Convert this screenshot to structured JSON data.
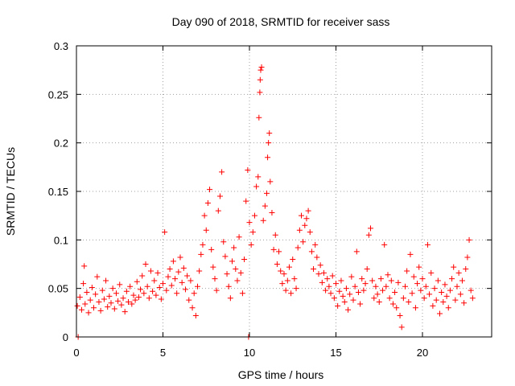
{
  "chart_data": {
    "type": "scatter",
    "title": "Day 090 of 2018, SRMTID for receiver sass",
    "xlabel": "GPS time / hours",
    "ylabel": "SRMTID / TECUs",
    "xlim": [
      0,
      24
    ],
    "ylim": [
      0,
      0.3
    ],
    "x_ticks": [
      "0",
      "5",
      "10",
      "15",
      "20"
    ],
    "x_tick_values": [
      0,
      5,
      10,
      15,
      20
    ],
    "y_ticks": [
      "0",
      "0.05",
      "0.1",
      "0.15",
      "0.2",
      "0.25",
      "0.3"
    ],
    "y_tick_values": [
      0,
      0.05,
      0.1,
      0.15,
      0.2,
      0.25,
      0.3
    ],
    "grid": true,
    "marker": "+",
    "marker_color": "#ff0000",
    "series": [
      {
        "name": "SRMTID",
        "points": [
          [
            0.05,
            0.032
          ],
          [
            0.1,
            0.0
          ],
          [
            0.2,
            0.041
          ],
          [
            0.3,
            0.028
          ],
          [
            0.4,
            0.055
          ],
          [
            0.45,
            0.073
          ],
          [
            0.5,
            0.034
          ],
          [
            0.6,
            0.046
          ],
          [
            0.7,
            0.025
          ],
          [
            0.8,
            0.038
          ],
          [
            0.9,
            0.051
          ],
          [
            1.0,
            0.03
          ],
          [
            1.1,
            0.044
          ],
          [
            1.2,
            0.062
          ],
          [
            1.3,
            0.036
          ],
          [
            1.4,
            0.027
          ],
          [
            1.5,
            0.048
          ],
          [
            1.6,
            0.039
          ],
          [
            1.7,
            0.058
          ],
          [
            1.8,
            0.031
          ],
          [
            1.9,
            0.042
          ],
          [
            2.0,
            0.035
          ],
          [
            2.1,
            0.05
          ],
          [
            2.2,
            0.029
          ],
          [
            2.3,
            0.045
          ],
          [
            2.4,
            0.037
          ],
          [
            2.5,
            0.054
          ],
          [
            2.6,
            0.033
          ],
          [
            2.7,
            0.04
          ],
          [
            2.8,
            0.026
          ],
          [
            2.9,
            0.047
          ],
          [
            3.0,
            0.036
          ],
          [
            3.1,
            0.052
          ],
          [
            3.2,
            0.034
          ],
          [
            3.3,
            0.043
          ],
          [
            3.4,
            0.038
          ],
          [
            3.5,
            0.057
          ],
          [
            3.6,
            0.041
          ],
          [
            3.7,
            0.049
          ],
          [
            3.8,
            0.063
          ],
          [
            3.9,
            0.045
          ],
          [
            4.0,
            0.075
          ],
          [
            4.1,
            0.052
          ],
          [
            4.2,
            0.04
          ],
          [
            4.3,
            0.068
          ],
          [
            4.4,
            0.047
          ],
          [
            4.5,
            0.058
          ],
          [
            4.6,
            0.043
          ],
          [
            4.7,
            0.066
          ],
          [
            4.8,
            0.051
          ],
          [
            4.9,
            0.039
          ],
          [
            5.0,
            0.055
          ],
          [
            5.1,
            0.108
          ],
          [
            5.2,
            0.048
          ],
          [
            5.3,
            0.062
          ],
          [
            5.4,
            0.07
          ],
          [
            5.5,
            0.053
          ],
          [
            5.6,
            0.078
          ],
          [
            5.7,
            0.06
          ],
          [
            5.8,
            0.045
          ],
          [
            5.9,
            0.067
          ],
          [
            6.0,
            0.082
          ],
          [
            6.1,
            0.056
          ],
          [
            6.2,
            0.071
          ],
          [
            6.3,
            0.049
          ],
          [
            6.4,
            0.063
          ],
          [
            6.5,
            0.038
          ],
          [
            6.6,
            0.058
          ],
          [
            6.7,
            0.03
          ],
          [
            6.8,
            0.045
          ],
          [
            6.9,
            0.022
          ],
          [
            7.0,
            0.052
          ],
          [
            7.1,
            0.068
          ],
          [
            7.2,
            0.085
          ],
          [
            7.3,
            0.095
          ],
          [
            7.4,
            0.125
          ],
          [
            7.5,
            0.11
          ],
          [
            7.6,
            0.138
          ],
          [
            7.7,
            0.152
          ],
          [
            7.8,
            0.09
          ],
          [
            7.9,
            0.072
          ],
          [
            8.0,
            0.06
          ],
          [
            8.1,
            0.048
          ],
          [
            8.2,
            0.13
          ],
          [
            8.3,
            0.145
          ],
          [
            8.4,
            0.17
          ],
          [
            8.5,
            0.098
          ],
          [
            8.6,
            0.083
          ],
          [
            8.7,
            0.065
          ],
          [
            8.8,
            0.052
          ],
          [
            8.9,
            0.04
          ],
          [
            9.0,
            0.078
          ],
          [
            9.1,
            0.092
          ],
          [
            9.2,
            0.07
          ],
          [
            9.3,
            0.058
          ],
          [
            9.4,
            0.103
          ],
          [
            9.5,
            0.066
          ],
          [
            9.6,
            0.045
          ],
          [
            9.7,
            0.08
          ],
          [
            9.8,
            0.14
          ],
          [
            9.9,
            0.172
          ],
          [
            9.95,
            0.0
          ],
          [
            10.0,
            0.118
          ],
          [
            10.1,
            0.095
          ],
          [
            10.2,
            0.108
          ],
          [
            10.3,
            0.125
          ],
          [
            10.4,
            0.155
          ],
          [
            10.5,
            0.165
          ],
          [
            10.55,
            0.226
          ],
          [
            10.6,
            0.252
          ],
          [
            10.62,
            0.265
          ],
          [
            10.65,
            0.275
          ],
          [
            10.7,
            0.278
          ],
          [
            10.8,
            0.12
          ],
          [
            10.9,
            0.135
          ],
          [
            11.0,
            0.148
          ],
          [
            11.05,
            0.185
          ],
          [
            11.1,
            0.2
          ],
          [
            11.15,
            0.21
          ],
          [
            11.2,
            0.16
          ],
          [
            11.3,
            0.128
          ],
          [
            11.4,
            0.09
          ],
          [
            11.5,
            0.105
          ],
          [
            11.6,
            0.075
          ],
          [
            11.7,
            0.088
          ],
          [
            11.8,
            0.068
          ],
          [
            11.9,
            0.055
          ],
          [
            12.0,
            0.065
          ],
          [
            12.1,
            0.048
          ],
          [
            12.2,
            0.058
          ],
          [
            12.3,
            0.072
          ],
          [
            12.4,
            0.045
          ],
          [
            12.5,
            0.08
          ],
          [
            12.6,
            0.06
          ],
          [
            12.7,
            0.05
          ],
          [
            12.8,
            0.092
          ],
          [
            12.9,
            0.11
          ],
          [
            13.0,
            0.125
          ],
          [
            13.1,
            0.098
          ],
          [
            13.2,
            0.115
          ],
          [
            13.3,
            0.122
          ],
          [
            13.4,
            0.13
          ],
          [
            13.5,
            0.108
          ],
          [
            13.6,
            0.088
          ],
          [
            13.7,
            0.07
          ],
          [
            13.8,
            0.095
          ],
          [
            13.9,
            0.082
          ],
          [
            14.0,
            0.065
          ],
          [
            14.1,
            0.074
          ],
          [
            14.2,
            0.056
          ],
          [
            14.3,
            0.066
          ],
          [
            14.4,
            0.048
          ],
          [
            14.5,
            0.06
          ],
          [
            14.6,
            0.052
          ],
          [
            14.7,
            0.045
          ],
          [
            14.8,
            0.063
          ],
          [
            14.9,
            0.04
          ],
          [
            15.0,
            0.055
          ],
          [
            15.1,
            0.032
          ],
          [
            15.2,
            0.047
          ],
          [
            15.3,
            0.058
          ],
          [
            15.4,
            0.042
          ],
          [
            15.5,
            0.036
          ],
          [
            15.6,
            0.05
          ],
          [
            15.7,
            0.028
          ],
          [
            15.8,
            0.044
          ],
          [
            15.9,
            0.062
          ],
          [
            16.0,
            0.038
          ],
          [
            16.1,
            0.052
          ],
          [
            16.2,
            0.088
          ],
          [
            16.3,
            0.046
          ],
          [
            16.4,
            0.034
          ],
          [
            16.5,
            0.06
          ],
          [
            16.6,
            0.048
          ],
          [
            16.7,
            0.055
          ],
          [
            16.8,
            0.07
          ],
          [
            16.9,
            0.105
          ],
          [
            17.0,
            0.112
          ],
          [
            17.1,
            0.058
          ],
          [
            17.2,
            0.04
          ],
          [
            17.3,
            0.052
          ],
          [
            17.4,
            0.044
          ],
          [
            17.5,
            0.036
          ],
          [
            17.6,
            0.06
          ],
          [
            17.7,
            0.048
          ],
          [
            17.8,
            0.095
          ],
          [
            17.9,
            0.052
          ],
          [
            18.0,
            0.064
          ],
          [
            18.1,
            0.04
          ],
          [
            18.2,
            0.058
          ],
          [
            18.3,
            0.034
          ],
          [
            18.4,
            0.046
          ],
          [
            18.5,
            0.03
          ],
          [
            18.6,
            0.056
          ],
          [
            18.7,
            0.022
          ],
          [
            18.8,
            0.01
          ],
          [
            18.9,
            0.04
          ],
          [
            19.0,
            0.052
          ],
          [
            19.1,
            0.068
          ],
          [
            19.2,
            0.036
          ],
          [
            19.3,
            0.085
          ],
          [
            19.4,
            0.045
          ],
          [
            19.5,
            0.062
          ],
          [
            19.6,
            0.03
          ],
          [
            19.7,
            0.055
          ],
          [
            19.8,
            0.072
          ],
          [
            19.9,
            0.048
          ],
          [
            20.0,
            0.06
          ],
          [
            20.1,
            0.04
          ],
          [
            20.2,
            0.052
          ],
          [
            20.3,
            0.095
          ],
          [
            20.4,
            0.044
          ],
          [
            20.5,
            0.066
          ],
          [
            20.6,
            0.032
          ],
          [
            20.7,
            0.05
          ],
          [
            20.8,
            0.038
          ],
          [
            20.9,
            0.058
          ],
          [
            21.0,
            0.024
          ],
          [
            21.1,
            0.046
          ],
          [
            21.2,
            0.036
          ],
          [
            21.3,
            0.054
          ],
          [
            21.4,
            0.042
          ],
          [
            21.5,
            0.03
          ],
          [
            21.6,
            0.048
          ],
          [
            21.7,
            0.06
          ],
          [
            21.8,
            0.072
          ],
          [
            21.9,
            0.038
          ],
          [
            22.0,
            0.052
          ],
          [
            22.1,
            0.066
          ],
          [
            22.2,
            0.044
          ],
          [
            22.3,
            0.058
          ],
          [
            22.4,
            0.035
          ],
          [
            22.5,
            0.07
          ],
          [
            22.6,
            0.082
          ],
          [
            22.7,
            0.1
          ],
          [
            22.8,
            0.048
          ],
          [
            22.9,
            0.04
          ]
        ]
      }
    ]
  }
}
